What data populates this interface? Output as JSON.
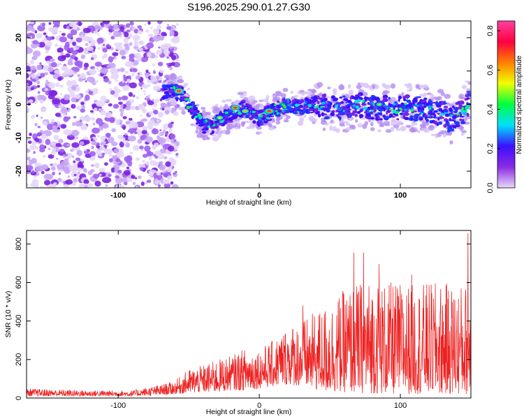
{
  "chart_data": [
    {
      "type": "heatmap",
      "title": "S196.2025.290.01.27.G30",
      "xlabel": "Height of straight line (km)",
      "ylabel": "Frequency (Hz)",
      "xlim": [
        -165,
        150
      ],
      "ylim": [
        -25,
        25
      ],
      "xticks": [
        -100,
        0,
        100
      ],
      "xtick_labels": [
        "-100",
        "0",
        "100"
      ],
      "yticks": [
        -20,
        -10,
        0,
        10,
        20
      ],
      "ytick_labels": [
        "-20",
        "-10",
        "0",
        "10",
        "20"
      ],
      "colorbar": {
        "label": "Normalized spectral amplitude",
        "range": [
          0,
          0.85
        ],
        "ticks": [
          0,
          0.2,
          0.4,
          0.6,
          0.8
        ],
        "tick_labels": [
          "0.0",
          "0.2",
          "0.4",
          "0.6",
          "0.8"
        ],
        "colors": [
          "#e8d8f8",
          "#8a2be2",
          "#3a10ff",
          "#00e0ff",
          "#00ff40",
          "#f0ff00",
          "#ff8000",
          "#ff0040",
          "#ff40a0"
        ]
      },
      "noise_region_x": [
        -165,
        -60
      ],
      "band_centerline": {
        "x": [
          -68,
          -60,
          -55,
          -50,
          -45,
          -40,
          -35,
          -30,
          -25,
          -20,
          -15,
          -10,
          -5,
          0,
          5,
          10,
          20,
          30,
          40,
          50,
          60,
          70,
          80,
          90,
          100,
          110,
          120,
          125,
          130,
          135,
          140,
          145,
          150
        ],
        "y": [
          4,
          4,
          3,
          0,
          -3,
          -6,
          -7,
          -5,
          -4,
          -3,
          -2,
          -1,
          -3,
          -4,
          -3,
          -2,
          0,
          -1,
          0,
          -1,
          -1,
          0,
          -1,
          -1,
          -1,
          -1,
          -2,
          -3,
          -2,
          -5,
          -3,
          -2,
          2
        ]
      },
      "hotspots": [
        {
          "x": -57,
          "y": 4,
          "value": 0.85
        },
        {
          "x": -17,
          "y": -1,
          "value": 0.8
        },
        {
          "x": 7,
          "y": -2,
          "value": 0.82
        },
        {
          "x": -10,
          "y": -2,
          "value": 0.6
        },
        {
          "x": -28,
          "y": -4,
          "value": 0.55
        },
        {
          "x": 85,
          "y": 0,
          "value": 0.5
        }
      ]
    },
    {
      "type": "line",
      "xlabel": "Height of straight line (km)",
      "ylabel": "SNR (10 * v/v)",
      "xlim": [
        -165,
        150
      ],
      "ylim": [
        0,
        870
      ],
      "xticks": [
        -100,
        0,
        100
      ],
      "xtick_labels": [
        "-100",
        "0",
        "100"
      ],
      "yticks": [
        0,
        200,
        400,
        600,
        800
      ],
      "ytick_labels": [
        "0",
        "200",
        "400",
        "600",
        "800"
      ],
      "color": "#ee2222",
      "envelope": {
        "x": [
          -165,
          -120,
          -90,
          -70,
          -60,
          -50,
          -40,
          -30,
          -20,
          -10,
          0,
          10,
          20,
          30,
          40,
          50,
          60,
          70,
          80,
          90,
          100,
          110,
          120,
          130,
          140,
          150
        ],
        "ymax": [
          50,
          40,
          40,
          70,
          90,
          150,
          170,
          200,
          220,
          260,
          260,
          300,
          380,
          400,
          450,
          500,
          560,
          600,
          620,
          600,
          600,
          590,
          600,
          600,
          590,
          600
        ],
        "ymin": [
          10,
          10,
          10,
          15,
          20,
          25,
          30,
          30,
          40,
          40,
          50,
          60,
          70,
          60,
          40,
          30,
          30,
          25,
          25,
          20,
          20,
          20,
          20,
          20,
          20,
          20
        ]
      },
      "peaks": [
        {
          "x": 67,
          "y": 755
        },
        {
          "x": 74,
          "y": 755
        },
        {
          "x": 85,
          "y": 695
        },
        {
          "x": 148,
          "y": 855
        },
        {
          "x": 31,
          "y": 480
        },
        {
          "x": 108,
          "y": 640
        }
      ]
    }
  ]
}
